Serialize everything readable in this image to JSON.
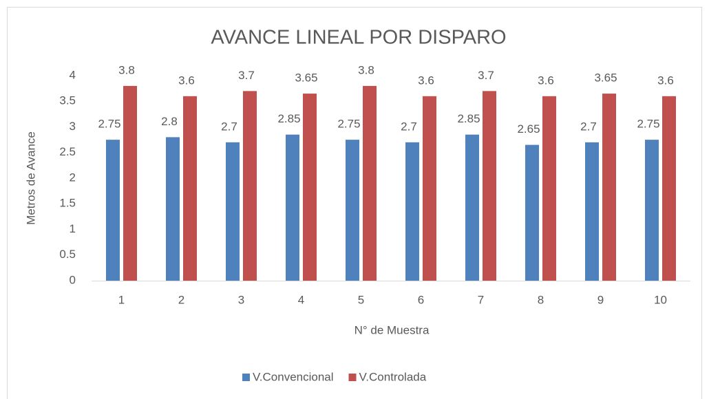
{
  "chart_data": {
    "type": "bar",
    "title": "AVANCE LINEAL POR DISPARO",
    "x_label": "N° de Muestra",
    "y_label": "Metros de Avance",
    "categories": [
      "1",
      "2",
      "3",
      "4",
      "5",
      "6",
      "7",
      "8",
      "9",
      "10"
    ],
    "series": [
      {
        "name": "V.Convencional",
        "color": "#4f81bd",
        "values": [
          2.75,
          2.8,
          2.7,
          2.85,
          2.75,
          2.7,
          2.85,
          2.65,
          2.7,
          2.75
        ]
      },
      {
        "name": "V.Controlada",
        "color": "#c0504d",
        "values": [
          3.8,
          3.6,
          3.7,
          3.65,
          3.8,
          3.6,
          3.7,
          3.6,
          3.65,
          3.6
        ]
      }
    ],
    "ylim": [
      0,
      4
    ],
    "yticks": [
      0,
      0.5,
      1,
      1.5,
      2,
      2.5,
      3,
      3.5,
      4
    ],
    "grid": false,
    "legend": "bottom"
  }
}
